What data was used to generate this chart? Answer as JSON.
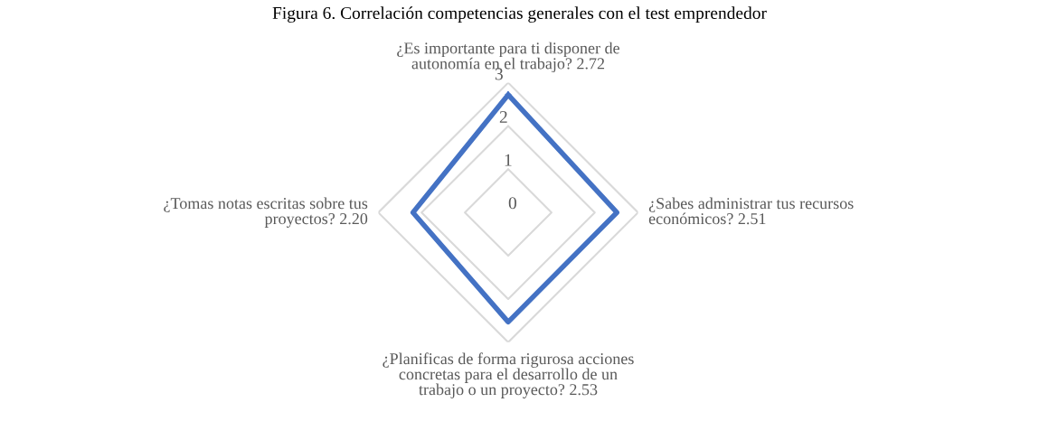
{
  "chart_data": {
    "type": "radar",
    "title": "Figura 6. Correlación competencias generales con el test emprendedor",
    "categories": [
      "¿Es importante para ti disponer de\nautonomía en el trabajo? 2.72",
      "¿Sabes administrar tus recursos\neconómicos? 2.51",
      "¿Planificas de forma rigurosa acciones\nconcretas para el desarrollo de un\ntrabajo o un proyecto? 2.53",
      "¿Tomas notas escritas sobre tus\nproyectos? 2.20"
    ],
    "series": [
      {
        "color": "#4472c4",
        "values": [
          2.72,
          2.51,
          2.53,
          2.2
        ]
      }
    ],
    "ylim": [
      0,
      3
    ],
    "yticks": [
      0,
      1,
      2,
      3
    ],
    "grid": true,
    "marker": "none",
    "line_style": "solid"
  }
}
